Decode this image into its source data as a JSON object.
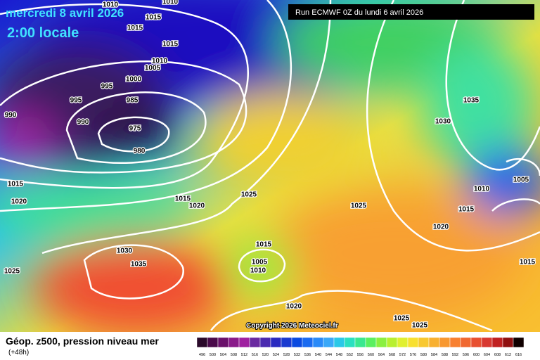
{
  "header": {
    "date": "mercredi 8 avril 2026",
    "time": "2:00 locale",
    "run": "Run ECMWF 0Z du lundi 6 avril 2026",
    "copyright": "Copyright 2026 Meteociel.fr"
  },
  "isobar_labels": [
    1010,
    1015,
    1015,
    1010,
    1015,
    1010,
    1005,
    1000,
    995,
    995,
    985,
    990,
    990,
    975,
    980,
    1015,
    1020,
    1015,
    1020,
    1025,
    1025,
    1035,
    1030,
    1010,
    1005,
    1015,
    1020,
    1015,
    1005,
    1010,
    1030,
    1035,
    1025,
    1020,
    1025,
    1025,
    1015
  ],
  "legend": {
    "title": "Géop. z500, pression niveau mer",
    "subtitle": "(+48h)",
    "steps": [
      496,
      500,
      504,
      508,
      512,
      516,
      520,
      524,
      528,
      532,
      536,
      540,
      544,
      548,
      552,
      556,
      560,
      564,
      568,
      572,
      576,
      580,
      584,
      588,
      592,
      596,
      600,
      604,
      608,
      612,
      616
    ],
    "colors": [
      "#2a0a2a",
      "#4a0a4a",
      "#6a106a",
      "#8a1a8a",
      "#a020a0",
      "#6a2aa0",
      "#4a2ab0",
      "#2a2ac0",
      "#1a3ad0",
      "#0a4ae0",
      "#1a6af0",
      "#2a8af8",
      "#3aa8f8",
      "#2ac8e8",
      "#2ae0c0",
      "#3ae890",
      "#5af060",
      "#8af040",
      "#b8f030",
      "#e0f030",
      "#f8e030",
      "#f8c830",
      "#f8b030",
      "#f89830",
      "#f88030",
      "#f06830",
      "#e85030",
      "#d83830",
      "#c02020",
      "#901010",
      "#100000"
    ]
  }
}
